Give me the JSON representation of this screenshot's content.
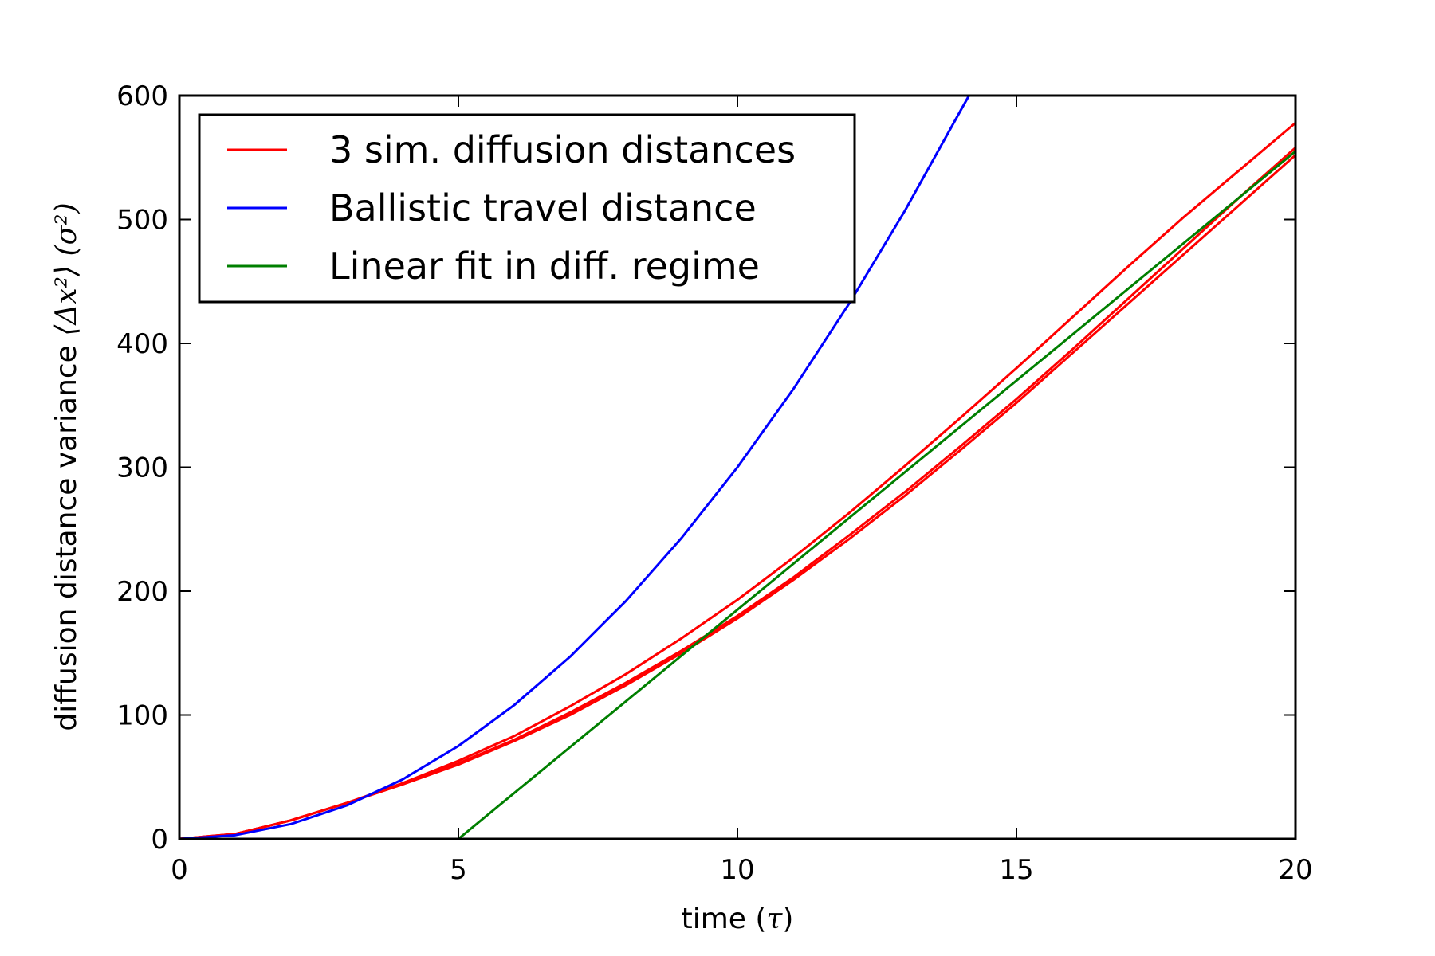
{
  "chart_data": {
    "type": "line",
    "xlabel": {
      "prefix": "time (",
      "symbol": "τ",
      "suffix": ")"
    },
    "ylabel": {
      "prefix": "diffusion distance variance ",
      "symbol": "⟨Δx²⟩ (σ²)"
    },
    "xlim": [
      0,
      20
    ],
    "ylim": [
      0,
      600
    ],
    "xticks": [
      0,
      5,
      10,
      15,
      20
    ],
    "yticks": [
      0,
      100,
      200,
      300,
      400,
      500,
      600
    ],
    "grid": false,
    "legend_position": "top-left",
    "series": [
      {
        "name": "3 sim. diffusion distances",
        "color": "#ff0000",
        "x": [
          0,
          1,
          2,
          3,
          4,
          5,
          6,
          7,
          8,
          9,
          10,
          11,
          12,
          13,
          14,
          15,
          16,
          17,
          18,
          19,
          20
        ],
        "y": [
          0,
          4,
          15,
          29,
          45,
          63,
          83,
          107,
          133,
          162,
          193,
          227,
          263,
          301,
          340,
          380,
          421,
          462,
          502,
          540,
          578
        ]
      },
      {
        "name": "",
        "color": "#ff0000",
        "x": [
          0,
          1,
          2,
          3,
          4,
          5,
          6,
          7,
          8,
          9,
          10,
          11,
          12,
          13,
          14,
          15,
          16,
          17,
          18,
          19,
          20
        ],
        "y": [
          0,
          4,
          15,
          29,
          44,
          61,
          80,
          102,
          126,
          152,
          180,
          211,
          245,
          280,
          317,
          355,
          395,
          436,
          477,
          518,
          558
        ]
      },
      {
        "name": "",
        "color": "#ff0000",
        "x": [
          0,
          1,
          2,
          3,
          4,
          5,
          6,
          7,
          8,
          9,
          10,
          11,
          12,
          13,
          14,
          15,
          16,
          17,
          18,
          19,
          20
        ],
        "y": [
          0,
          4,
          15,
          29,
          44,
          60,
          79,
          100,
          124,
          150,
          178,
          209,
          242,
          277,
          314,
          352,
          392,
          432,
          472,
          512,
          552
        ]
      },
      {
        "name": "Ballistic travel distance",
        "color": "#0000ff",
        "x": [
          0,
          1,
          2,
          3,
          4,
          5,
          6,
          7,
          8,
          9,
          10,
          11,
          12,
          13,
          14,
          14.15
        ],
        "y": [
          0,
          3,
          12,
          27,
          48,
          75,
          108,
          147,
          192,
          243,
          300,
          363,
          432,
          507,
          588,
          600
        ]
      },
      {
        "name": "Linear fit in diff. regime",
        "color": "#007f00",
        "x": [
          5,
          20
        ],
        "y": [
          0,
          555
        ]
      }
    ]
  }
}
